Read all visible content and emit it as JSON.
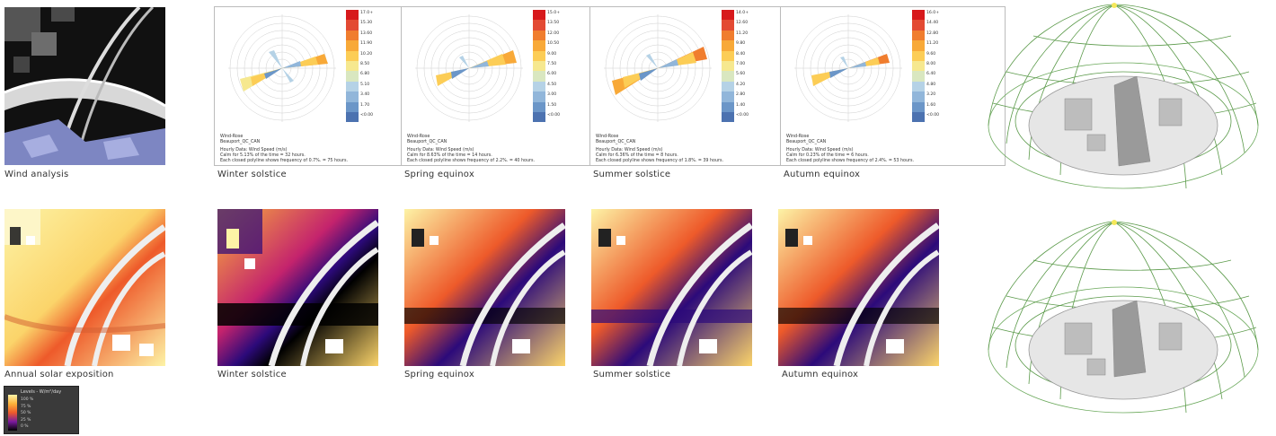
{
  "captions": {
    "wind_analysis": "Wind analysis",
    "annual_solar": "Annual solar exposition",
    "top": [
      "Winter solstice",
      "Spring equinox",
      "Summer solstice",
      "Autumn equinox"
    ],
    "bottom": [
      "Winter solstice",
      "Spring equinox",
      "Summer solstice",
      "Autumn equinox"
    ]
  },
  "roses": [
    {
      "ticks": [
        "17.0+",
        "15.30",
        "13.60",
        "11.90",
        "10.20",
        "8.50",
        "6.80",
        "5.10",
        "3.40",
        "1.70",
        "<0.00"
      ],
      "title": "Wind-Rose",
      "location": "Beauport_QC_CAN",
      "data": "Hourly Data: Wind Speed (m/s)",
      "calm": "Calm for 5.13% of the time = 32 hours.",
      "note": "Each closed polyline shows frequency of 0.7%. = 75 hours."
    },
    {
      "ticks": [
        "15.0+",
        "13.50",
        "12.00",
        "10.50",
        "9.00",
        "7.50",
        "6.00",
        "4.50",
        "3.00",
        "1.50",
        "<0.00"
      ],
      "title": "Wind-Rose",
      "location": "Beauport_QC_CAN",
      "data": "Hourly Data: Wind Speed (m/s)",
      "calm": "Calm for 8.63% of the time = 14 hours.",
      "note": "Each closed polyline shows frequency of 2.2%. = 40 hours."
    },
    {
      "ticks": [
        "14.0+",
        "12.60",
        "11.20",
        "9.80",
        "8.40",
        "7.00",
        "5.60",
        "4.20",
        "2.80",
        "1.40",
        "<0.00"
      ],
      "title": "Wind-Rose",
      "location": "Beauport_QC_CAN",
      "data": "Hourly Data: Wind Speed (m/s)",
      "calm": "Calm for 6.36% of the time = 8 hours.",
      "note": "Each closed polyline shows frequency of 1.8%. = 39 hours."
    },
    {
      "ticks": [
        "16.0+",
        "14.40",
        "12.80",
        "11.20",
        "9.60",
        "8.00",
        "6.40",
        "4.80",
        "3.20",
        "1.60",
        "<0.00"
      ],
      "title": "Wind-Rose",
      "location": "Beauport_QC_CAN",
      "data": "Hourly Data: Wind Speed (m/s)",
      "calm": "Calm for 0.23% of the time = 6 hours.",
      "note": "Each closed polyline shows frequency of 2.4%. = 53 hours."
    }
  ],
  "colors": {
    "rose_scale": [
      "#d7191c",
      "#e34a33",
      "#f07d2e",
      "#f8a938",
      "#fccd56",
      "#f6e88f",
      "#d9e7c0",
      "#b5d2e6",
      "#91b6da",
      "#6b96c8",
      "#4c72b0"
    ],
    "heat_scale": [
      "#000000",
      "#2c0a7a",
      "#7a1aa0",
      "#c4236d",
      "#ee5a2a",
      "#fbb33a",
      "#fdf3a6"
    ]
  },
  "legend": {
    "title": "Levels - W/m²/day",
    "rows": [
      "100 %",
      "75 %",
      "50 %",
      "25 %",
      "0 %"
    ]
  }
}
